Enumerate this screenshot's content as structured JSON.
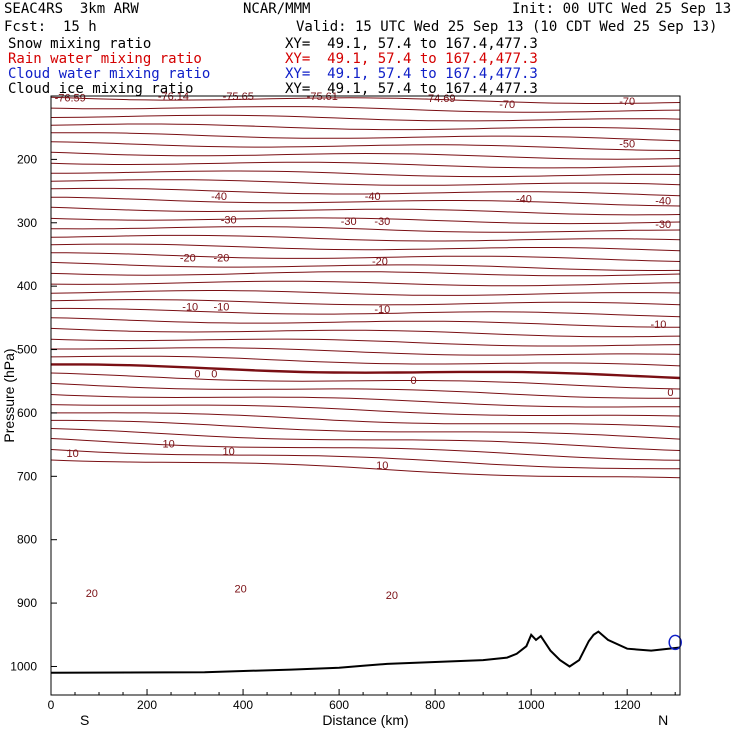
{
  "header": {
    "model": "SEAC4RS  3km ARW",
    "institution": "NCAR/MMM",
    "init": "Init: 00 UTC Wed 25 Sep 13",
    "fcst": "Fcst:  15 h",
    "valid": "Valid: 15 UTC Wed 25 Sep 13 (10 CDT Wed 25 Sep 13)"
  },
  "legend": [
    {
      "label": "Snow mixing ratio",
      "xy": "XY=  49.1, 57.4 to 167.4,477.3",
      "color": "#000000"
    },
    {
      "label": "Rain water mixing ratio",
      "xy": "XY=  49.1, 57.4 to 167.4,477.3",
      "color": "#d40000"
    },
    {
      "label": "Cloud water mixing ratio",
      "xy": "XY=  49.1, 57.4 to 167.4,477.3",
      "color": "#1020c8"
    },
    {
      "label": "Cloud ice mixing ratio",
      "xy": "XY=  49.1, 57.4 to 167.4,477.3",
      "color": "#000000"
    }
  ],
  "colors": {
    "isotherm": "#7a0f14",
    "terrain": "#000000",
    "cloud_water": "#1020c8"
  },
  "chart_data": {
    "type": "line",
    "title": "",
    "xlabel": "Distance (km)",
    "ylabel": "Pressure (hPa)",
    "xlim": [
      0,
      1310
    ],
    "ylim": [
      1045,
      100
    ],
    "x_ticks": [
      0,
      200,
      400,
      600,
      800,
      1000,
      1200
    ],
    "y_ticks": [
      200,
      300,
      400,
      500,
      600,
      700,
      800,
      900,
      1000
    ],
    "x_end_labels": {
      "left": "S",
      "right": "N"
    },
    "isotherm_interval": 5,
    "isotherm_labels": [
      {
        "text": "-76.59",
        "x": 40,
        "y": 102
      },
      {
        "text": "-76.14",
        "x": 255,
        "y": 100
      },
      {
        "text": "-75.65",
        "x": 390,
        "y": 100
      },
      {
        "text": "-75.61",
        "x": 565,
        "y": 100
      },
      {
        "text": "-74.69",
        "x": 810,
        "y": 103
      },
      {
        "text": "-70",
        "x": 950,
        "y": 113
      },
      {
        "text": "-70",
        "x": 1200,
        "y": 108
      },
      {
        "text": "-50",
        "x": 1200,
        "y": 175
      },
      {
        "text": "-40",
        "x": 350,
        "y": 258
      },
      {
        "text": "-40",
        "x": 670,
        "y": 258
      },
      {
        "text": "-40",
        "x": 985,
        "y": 262
      },
      {
        "text": "-40",
        "x": 1275,
        "y": 265
      },
      {
        "text": "-30",
        "x": 370,
        "y": 295
      },
      {
        "text": "-30",
        "x": 620,
        "y": 297
      },
      {
        "text": "-30",
        "x": 690,
        "y": 297
      },
      {
        "text": "-30",
        "x": 1275,
        "y": 302
      },
      {
        "text": "-20",
        "x": 285,
        "y": 355
      },
      {
        "text": "-20",
        "x": 355,
        "y": 355
      },
      {
        "text": "-20",
        "x": 685,
        "y": 360
      },
      {
        "text": "-10",
        "x": 290,
        "y": 432
      },
      {
        "text": "-10",
        "x": 355,
        "y": 432
      },
      {
        "text": "-10",
        "x": 690,
        "y": 436
      },
      {
        "text": "-10",
        "x": 1265,
        "y": 460
      },
      {
        "text": "0",
        "x": 305,
        "y": 538
      },
      {
        "text": "0",
        "x": 340,
        "y": 538
      },
      {
        "text": "0",
        "x": 755,
        "y": 548
      },
      {
        "text": "0",
        "x": 1290,
        "y": 567
      },
      {
        "text": "10",
        "x": 45,
        "y": 663
      },
      {
        "text": "10",
        "x": 245,
        "y": 648
      },
      {
        "text": "10",
        "x": 370,
        "y": 660
      },
      {
        "text": "10",
        "x": 690,
        "y": 682
      },
      {
        "text": "20",
        "x": 85,
        "y": 884
      },
      {
        "text": "20",
        "x": 395,
        "y": 877
      },
      {
        "text": "20",
        "x": 710,
        "y": 887
      }
    ],
    "terrain": {
      "name": "",
      "x": [
        0,
        320,
        500,
        600,
        650,
        700,
        800,
        900,
        950,
        970,
        990,
        1000,
        1010,
        1020,
        1040,
        1060,
        1080,
        1100,
        1120,
        1130,
        1140,
        1160,
        1200,
        1250,
        1310
      ],
      "y": [
        1010,
        1009,
        1005,
        1002,
        999,
        996,
        993,
        990,
        986,
        980,
        968,
        950,
        958,
        952,
        975,
        990,
        1000,
        990,
        960,
        950,
        945,
        958,
        972,
        975,
        970
      ]
    },
    "rain_mixing_ratio": {
      "name": "Rain water mixing ratio",
      "x": [],
      "y": []
    }
  }
}
